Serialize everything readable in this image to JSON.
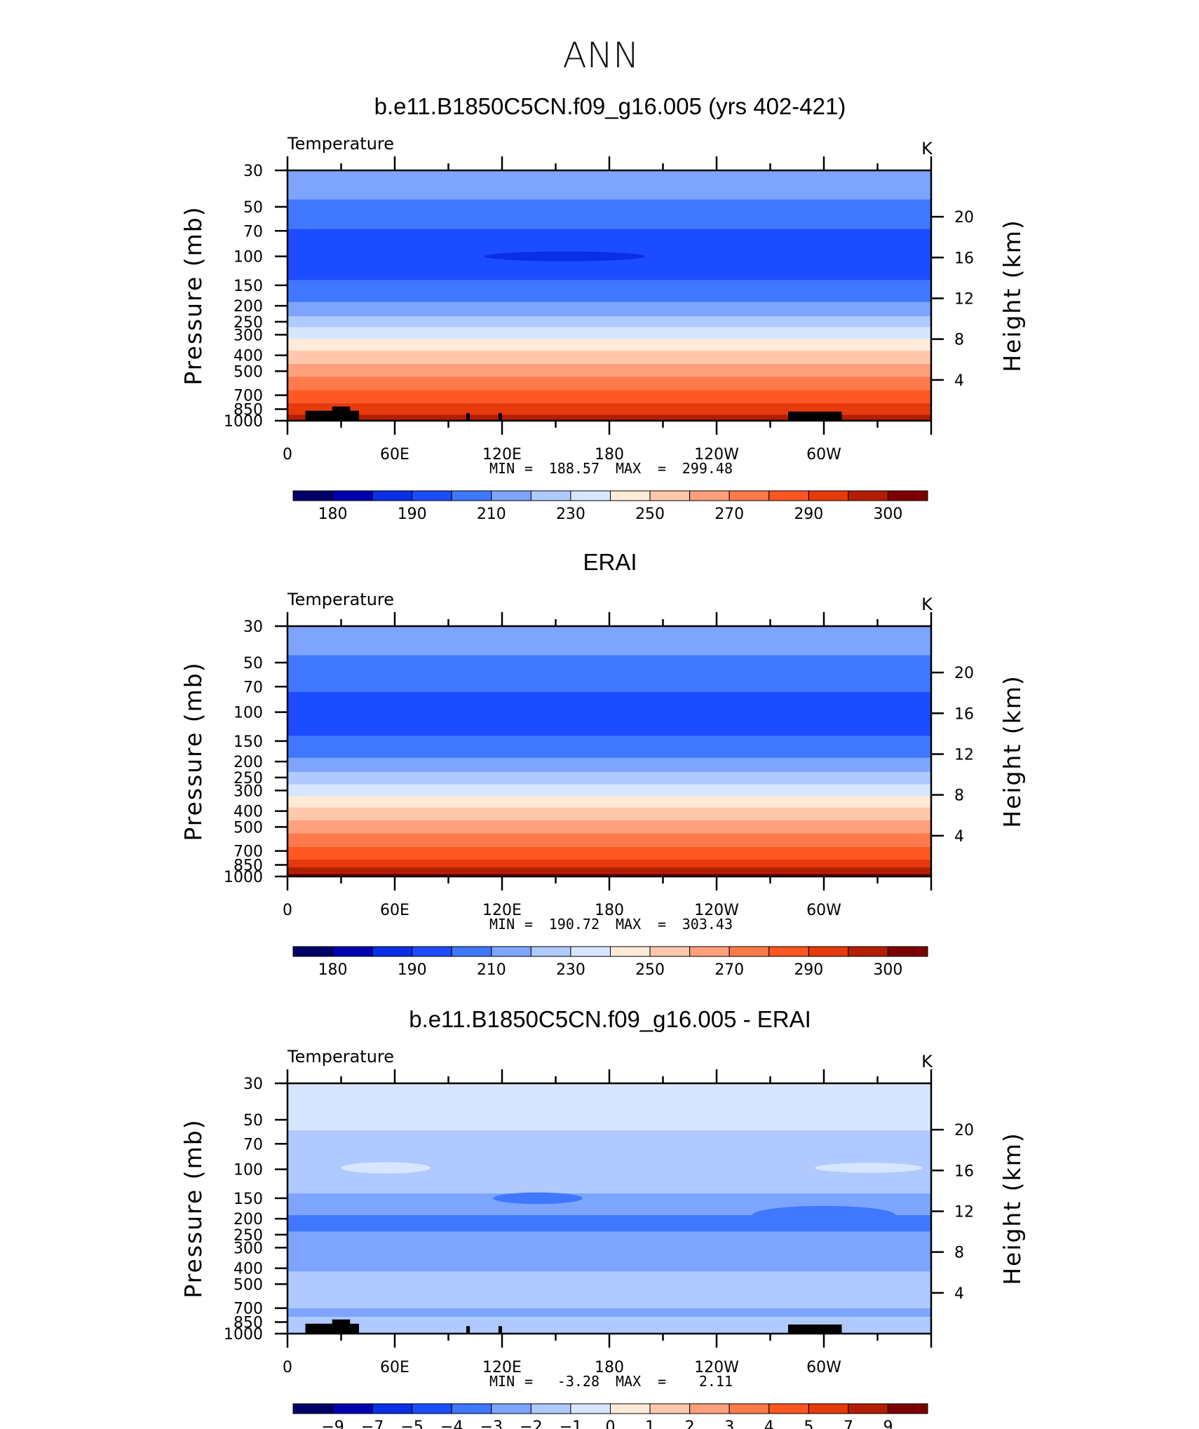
{
  "figure_title": "ANN",
  "colors": {
    "main": [
      "#000066",
      "#0000b0",
      "#0a2fe6",
      "#1b4cff",
      "#3f78ff",
      "#7da5ff",
      "#b0c9ff",
      "#d7e6ff",
      "#ffead8",
      "#ffc8ad",
      "#ffa07c",
      "#ff7a4b",
      "#ff5622",
      "#e63a0c",
      "#b31e00",
      "#7d0000"
    ],
    "diff": [
      "#000066",
      "#0000b0",
      "#0a2fe6",
      "#1b4cff",
      "#3f78ff",
      "#7da5ff",
      "#b0c9ff",
      "#d7e6ff",
      "#ffead8",
      "#ffc8ad",
      "#ffa07c",
      "#ff7a4b",
      "#ff5622",
      "#e63a0c",
      "#b31e00",
      "#7d0000"
    ]
  },
  "chart_data": [
    {
      "type": "heatmap",
      "title": "b.e11.B1850C5CN.f09_g16.005 (yrs 402-421)",
      "variable": "Temperature",
      "units": "K",
      "ylabel": "Pressure (mb)",
      "ylabel_right": "Height (km)",
      "x_ticks": [
        "0",
        "60E",
        "120E",
        "180",
        "120W",
        "60W"
      ],
      "y_ticks": [
        "30",
        "50",
        "70",
        "100",
        "150",
        "200",
        "250",
        "300",
        "400",
        "500",
        "700",
        "850",
        "1000"
      ],
      "y_right_ticks": [
        "20",
        "16",
        "12",
        "8",
        "4"
      ],
      "stats": {
        "min_label": "MIN",
        "min": "188.57",
        "max_label": "MAX",
        "max": "299.48"
      },
      "colorbar_labels": [
        "180",
        "190",
        "210",
        "230",
        "250",
        "270",
        "290",
        "300"
      ],
      "bands": [
        {
          "top": 30,
          "bottom": 45,
          "c": 5
        },
        {
          "top": 45,
          "bottom": 68,
          "c": 4
        },
        {
          "top": 68,
          "bottom": 140,
          "c": 3
        },
        {
          "top": 140,
          "bottom": 190,
          "c": 4
        },
        {
          "top": 190,
          "bottom": 232,
          "c": 5
        },
        {
          "top": 232,
          "bottom": 270,
          "c": 6
        },
        {
          "top": 270,
          "bottom": 318,
          "c": 7
        },
        {
          "top": 318,
          "bottom": 375,
          "c": 8
        },
        {
          "top": 375,
          "bottom": 450,
          "c": 9
        },
        {
          "top": 450,
          "bottom": 540,
          "c": 10
        },
        {
          "top": 540,
          "bottom": 650,
          "c": 11
        },
        {
          "top": 650,
          "bottom": 780,
          "c": 12
        },
        {
          "top": 780,
          "bottom": 920,
          "c": 13
        },
        {
          "top": 920,
          "bottom": 1000,
          "c": 14
        }
      ],
      "blobs": [
        {
          "lon": 155,
          "p": 100,
          "lon_half": 45,
          "dp": 4,
          "c": 2
        }
      ],
      "topo": [
        [
          10,
          40,
          870
        ],
        [
          25,
          35,
          820
        ],
        [
          100,
          102,
          900
        ],
        [
          118,
          120,
          900
        ],
        [
          280,
          310,
          880
        ]
      ]
    },
    {
      "type": "heatmap",
      "title": "ERAI",
      "variable": "Temperature",
      "units": "K",
      "ylabel": "Pressure (mb)",
      "ylabel_right": "Height (km)",
      "x_ticks": [
        "0",
        "60E",
        "120E",
        "180",
        "120W",
        "60W"
      ],
      "y_ticks": [
        "30",
        "50",
        "70",
        "100",
        "150",
        "200",
        "250",
        "300",
        "400",
        "500",
        "700",
        "850",
        "1000"
      ],
      "y_right_ticks": [
        "20",
        "16",
        "12",
        "8",
        "4"
      ],
      "stats": {
        "min_label": "MIN",
        "min": "190.72",
        "max_label": "MAX",
        "max": "303.43"
      },
      "colorbar_labels": [
        "180",
        "190",
        "210",
        "230",
        "250",
        "270",
        "290",
        "300"
      ],
      "bands": [
        {
          "top": 30,
          "bottom": 45,
          "c": 5
        },
        {
          "top": 45,
          "bottom": 75,
          "c": 4
        },
        {
          "top": 75,
          "bottom": 140,
          "c": 3
        },
        {
          "top": 140,
          "bottom": 190,
          "c": 4
        },
        {
          "top": 190,
          "bottom": 232,
          "c": 5
        },
        {
          "top": 232,
          "bottom": 275,
          "c": 6
        },
        {
          "top": 275,
          "bottom": 325,
          "c": 7
        },
        {
          "top": 325,
          "bottom": 380,
          "c": 8
        },
        {
          "top": 380,
          "bottom": 455,
          "c": 9
        },
        {
          "top": 455,
          "bottom": 545,
          "c": 10
        },
        {
          "top": 545,
          "bottom": 660,
          "c": 11
        },
        {
          "top": 660,
          "bottom": 790,
          "c": 12
        },
        {
          "top": 790,
          "bottom": 880,
          "c": 13
        },
        {
          "top": 880,
          "bottom": 960,
          "c": 14
        },
        {
          "top": 960,
          "bottom": 1000,
          "c": 15
        }
      ],
      "blobs": [],
      "topo": []
    },
    {
      "type": "heatmap",
      "title": "b.e11.B1850C5CN.f09_g16.005 - ERAI",
      "variable": "Temperature",
      "units": "K",
      "ylabel": "Pressure (mb)",
      "ylabel_right": "Height (km)",
      "x_ticks": [
        "0",
        "60E",
        "120E",
        "180",
        "120W",
        "60W"
      ],
      "y_ticks": [
        "30",
        "50",
        "70",
        "100",
        "150",
        "200",
        "250",
        "300",
        "400",
        "500",
        "700",
        "850",
        "1000"
      ],
      "y_right_ticks": [
        "20",
        "16",
        "12",
        "8",
        "4"
      ],
      "stats": {
        "min_label": "MIN",
        "min": "-3.28",
        "max_label": "MAX",
        "max": "2.11"
      },
      "colorbar_labels": [
        "-9",
        "-7",
        "-5",
        "-4",
        "-3",
        "-2",
        "-1",
        "0",
        "1",
        "2",
        "3",
        "4",
        "5",
        "7",
        "9"
      ],
      "bands": [
        {
          "top": 30,
          "bottom": 58,
          "c": 7
        },
        {
          "top": 58,
          "bottom": 140,
          "c": 6
        },
        {
          "top": 140,
          "bottom": 190,
          "c": 5
        },
        {
          "top": 190,
          "bottom": 240,
          "c": 4
        },
        {
          "top": 240,
          "bottom": 420,
          "c": 5
        },
        {
          "top": 420,
          "bottom": 700,
          "c": 6
        },
        {
          "top": 700,
          "bottom": 790,
          "c": 5
        },
        {
          "top": 790,
          "bottom": 1000,
          "c": 6
        }
      ],
      "blobs": [
        {
          "lon": 55,
          "p": 98,
          "lon_half": 25,
          "dp": 5,
          "c": 7
        },
        {
          "lon": 325,
          "p": 98,
          "lon_half": 30,
          "dp": 4,
          "c": 7
        },
        {
          "lon": 140,
          "p": 150,
          "lon_half": 25,
          "dp": 8,
          "c": 4
        },
        {
          "lon": 300,
          "p": 190,
          "lon_half": 40,
          "dp": 20,
          "c": 4
        }
      ],
      "topo": [
        [
          10,
          40,
          870
        ],
        [
          25,
          35,
          820
        ],
        [
          100,
          102,
          900
        ],
        [
          118,
          120,
          900
        ],
        [
          280,
          310,
          880
        ]
      ]
    }
  ]
}
